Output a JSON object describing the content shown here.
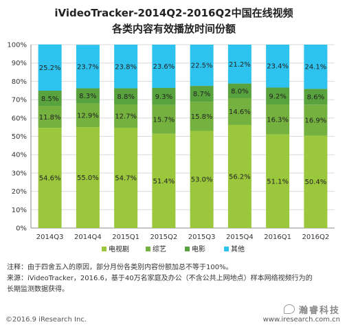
{
  "chart_data": {
    "type": "bar",
    "stacked": true,
    "title": [
      "iVideoTracker-2014Q2-2016Q2中国在线视频",
      "各类内容有效播放时间份额"
    ],
    "categories": [
      "2014Q3",
      "2014Q4",
      "2015Q1",
      "2015Q2",
      "2015Q3",
      "2015Q4",
      "2016Q1",
      "2016Q2"
    ],
    "series": [
      {
        "name": "电视剧",
        "color": "#9BC73D",
        "values": [
          54.6,
          55.0,
          54.7,
          51.4,
          53.0,
          56.2,
          51.1,
          50.4
        ]
      },
      {
        "name": "综艺",
        "color": "#74B13F",
        "values": [
          11.8,
          12.9,
          12.7,
          15.7,
          15.8,
          14.6,
          16.3,
          16.9
        ]
      },
      {
        "name": "电影",
        "color": "#58A33D",
        "values": [
          8.5,
          8.3,
          8.8,
          9.3,
          8.7,
          8.0,
          9.2,
          8.6
        ]
      },
      {
        "name": "其他",
        "color": "#2EC3EE",
        "values": [
          25.2,
          23.7,
          23.8,
          23.6,
          22.5,
          21.2,
          23.4,
          24.1
        ]
      }
    ],
    "ylim": [
      0,
      100
    ],
    "yticks": [
      "0%",
      "10%",
      "20%",
      "30%",
      "40%",
      "50%",
      "60%",
      "70%",
      "80%",
      "90%",
      "100%"
    ],
    "legend_position": "bottom"
  },
  "notes": {
    "note": "注释：由于四舍五入的原因，部分月份各类别内容份额加总不等于100%。",
    "source_line1": "来源：iVideoTracker，2016.6，基于40万名家庭及办公（不含公共上网地点）样本网络视频行为的",
    "source_line2": "长期监测数据获得。"
  },
  "footer": {
    "copyright": "©2016.9 iResearch Inc.",
    "website": "www.iresearch.com.cn",
    "watermark": "瀚睿科技"
  }
}
